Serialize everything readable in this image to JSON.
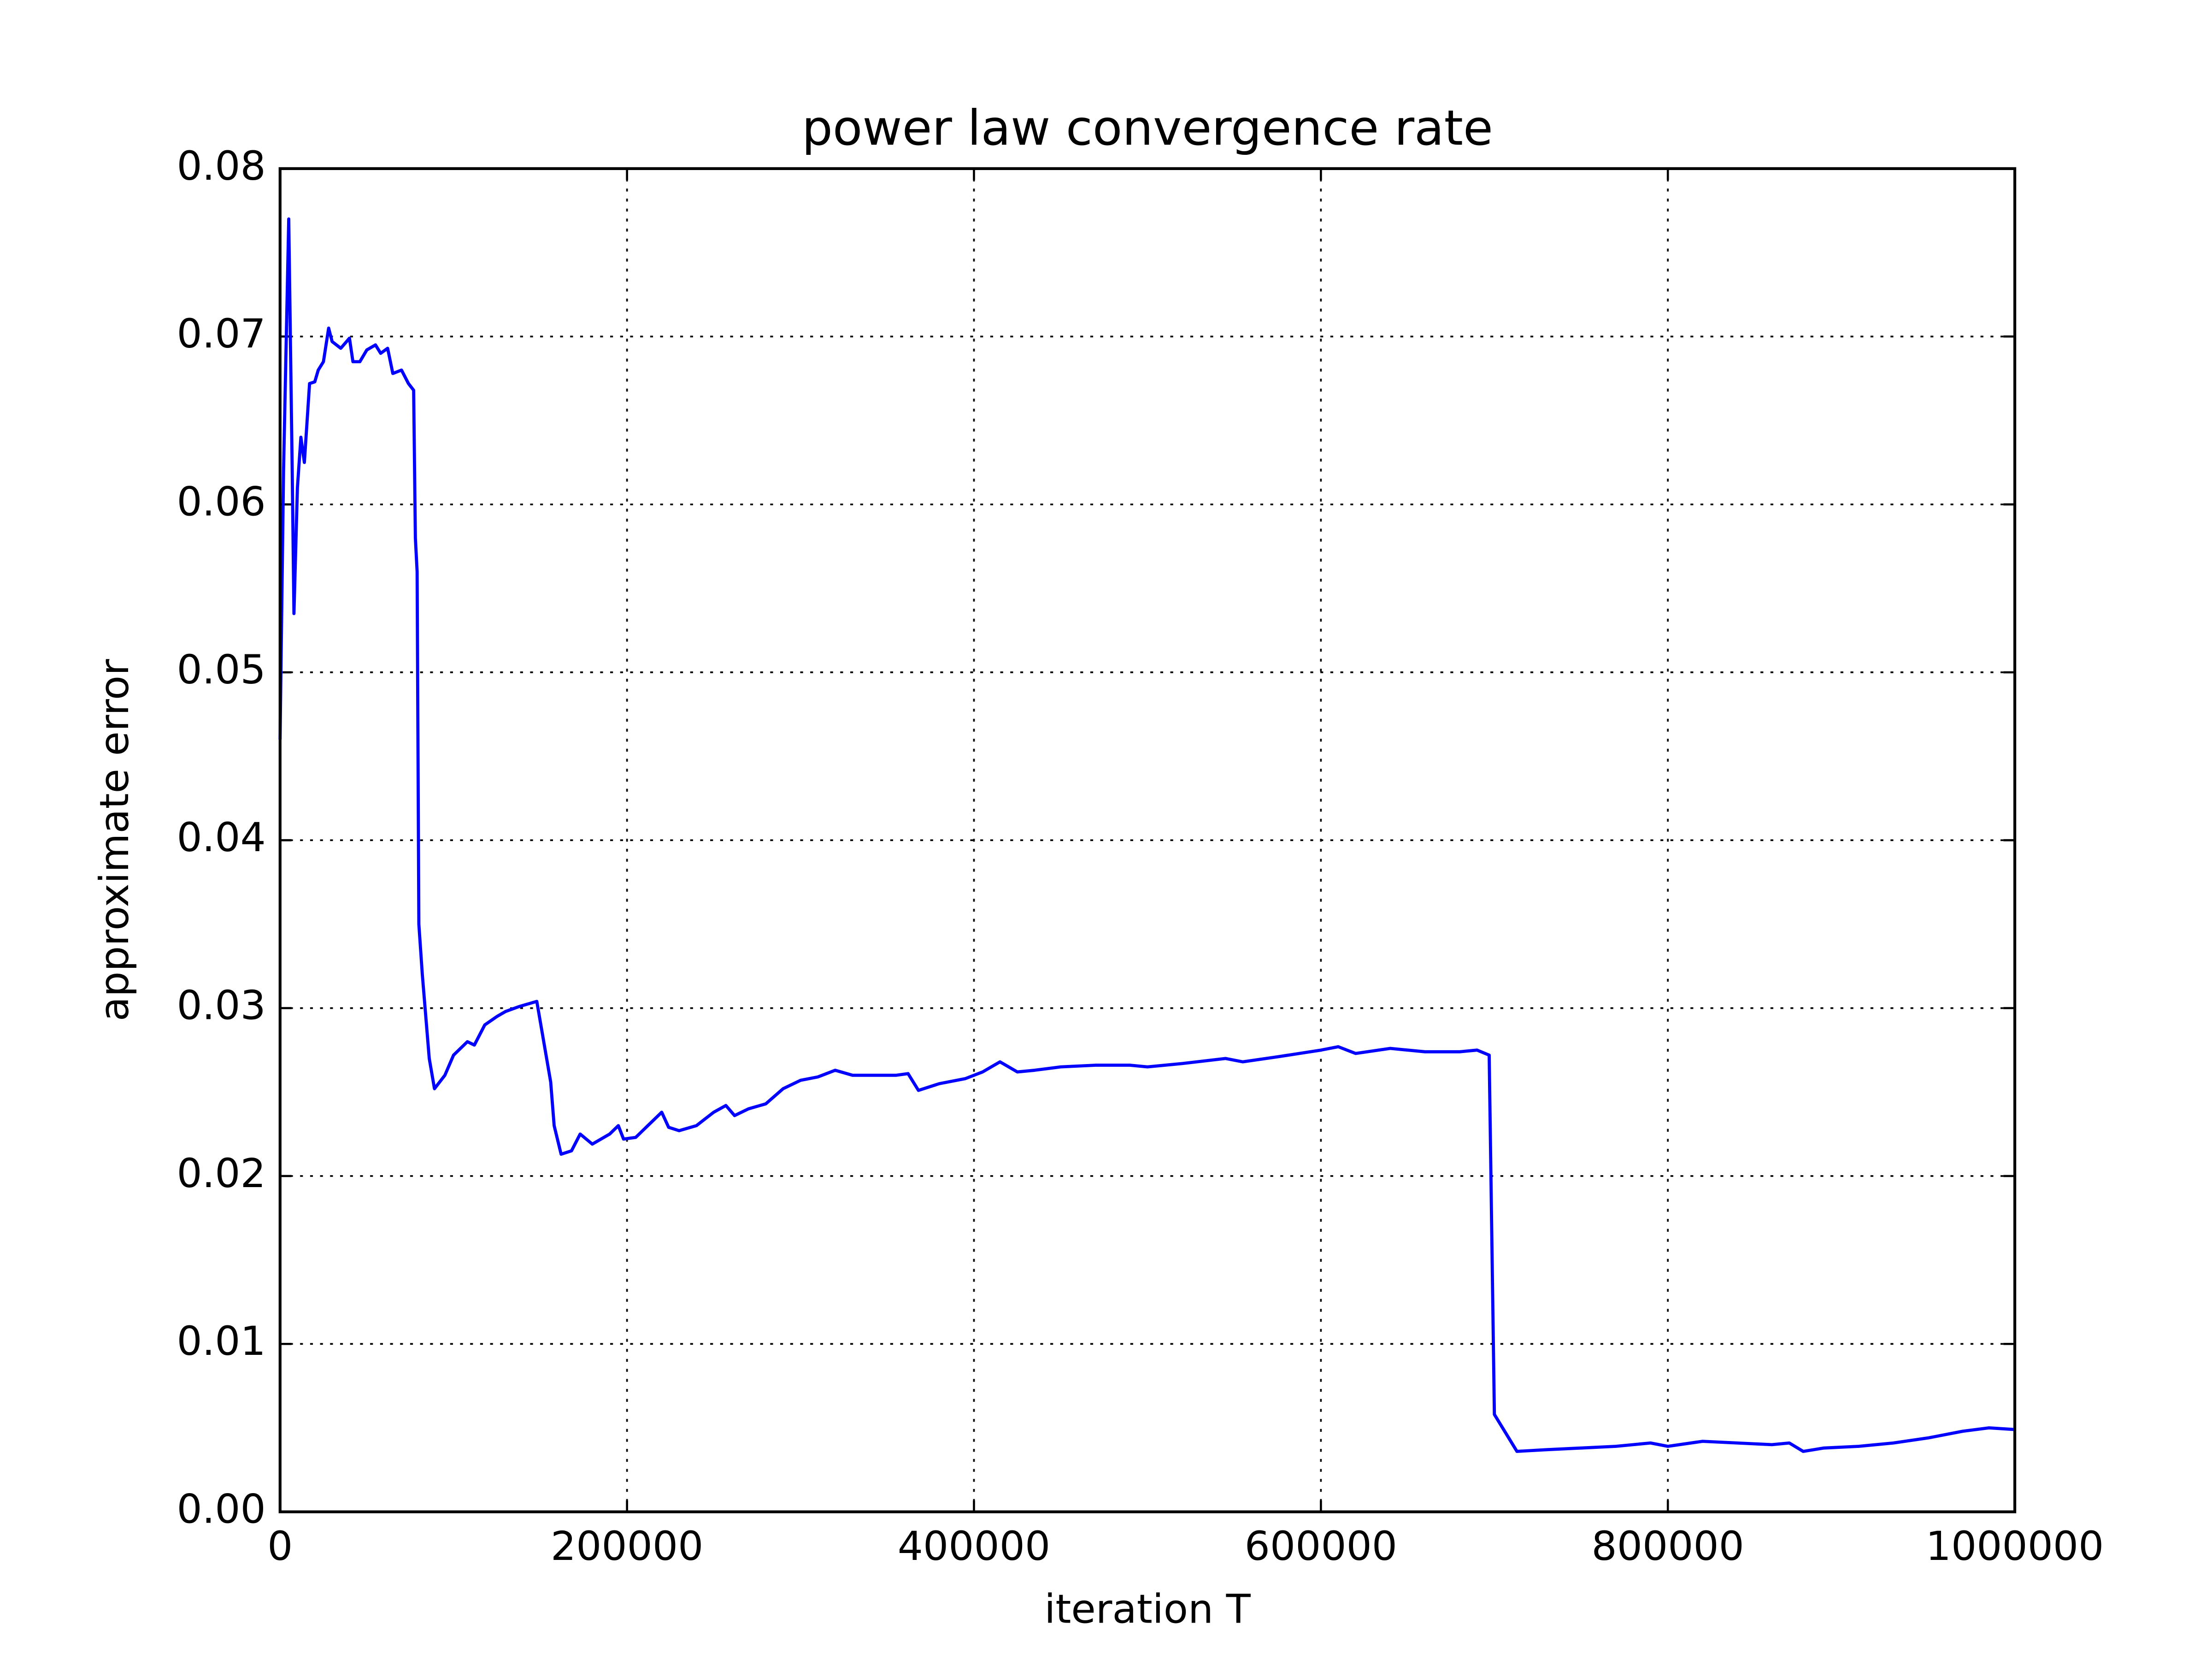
{
  "chart_data": {
    "type": "line",
    "title": "power law convergence rate",
    "x_label": "iteration T",
    "y_label": "approximate error",
    "xlim": [
      0,
      1000000
    ],
    "xticks": [
      0,
      200000,
      400000,
      600000,
      800000,
      1000000
    ],
    "ylim": [
      0,
      0.08
    ],
    "yticks": [
      {
        "value": 0,
        "label": "0.00"
      },
      0.01,
      0.02,
      0.03,
      0.04,
      0.05,
      0.06,
      0.07,
      0.08
    ],
    "grid": true,
    "series": [
      {
        "color": "#0000ff",
        "x": [
          0,
          2000,
          5000,
          7000,
          8000,
          10000,
          12000,
          14000,
          17000,
          20000,
          22000,
          25000,
          28000,
          30000,
          35000,
          40000,
          42000,
          46000,
          50000,
          55000,
          58000,
          62000,
          65000,
          70000,
          74000,
          77000,
          78000,
          79000,
          80000,
          82000,
          86000,
          89000,
          95000,
          100000,
          108000,
          112000,
          118000,
          125000,
          130000,
          138000,
          148000,
          156000,
          158000,
          162000,
          168000,
          173000,
          180000,
          190000,
          195000,
          198000,
          205000,
          212000,
          220000,
          224000,
          230000,
          240000,
          250000,
          257000,
          262000,
          270000,
          280000,
          290000,
          300000,
          310000,
          320000,
          330000,
          345000,
          355000,
          362000,
          368000,
          380000,
          395000,
          405000,
          415000,
          425000,
          435000,
          450000,
          470000,
          490000,
          500000,
          520000,
          545000,
          555000,
          575000,
          600000,
          610000,
          620000,
          640000,
          660000,
          680000,
          690000,
          697000,
          700000,
          713000,
          730000,
          750000,
          770000,
          790000,
          800000,
          820000,
          840000,
          860000,
          870000,
          878000,
          890000,
          910000,
          930000,
          950000,
          970000,
          985000,
          1000000
        ],
        "values": [
          0.046,
          0.062,
          0.077,
          0.062,
          0.0535,
          0.061,
          0.064,
          0.0625,
          0.0672,
          0.0673,
          0.068,
          0.0685,
          0.0705,
          0.0697,
          0.0693,
          0.0699,
          0.0685,
          0.0685,
          0.0692,
          0.0695,
          0.069,
          0.0693,
          0.0678,
          0.068,
          0.0672,
          0.0668,
          0.058,
          0.056,
          0.035,
          0.032,
          0.027,
          0.0252,
          0.026,
          0.0272,
          0.028,
          0.0278,
          0.029,
          0.0295,
          0.0298,
          0.0301,
          0.0304,
          0.0256,
          0.023,
          0.0213,
          0.0215,
          0.0225,
          0.0219,
          0.0225,
          0.023,
          0.0222,
          0.0223,
          0.023,
          0.0238,
          0.0229,
          0.0227,
          0.023,
          0.0238,
          0.0242,
          0.0236,
          0.024,
          0.0243,
          0.0252,
          0.0257,
          0.0259,
          0.0263,
          0.026,
          0.026,
          0.026,
          0.0261,
          0.0251,
          0.0255,
          0.0258,
          0.0262,
          0.0268,
          0.0262,
          0.0263,
          0.0265,
          0.0266,
          0.0266,
          0.0265,
          0.0267,
          0.027,
          0.0268,
          0.0271,
          0.0275,
          0.0277,
          0.0273,
          0.0276,
          0.0274,
          0.0274,
          0.0275,
          0.0272,
          0.0058,
          0.0036,
          0.0037,
          0.0038,
          0.0039,
          0.0041,
          0.0039,
          0.0042,
          0.0041,
          0.004,
          0.0041,
          0.0036,
          0.0038,
          0.0039,
          0.0041,
          0.0044,
          0.0048,
          0.005,
          0.0049
        ]
      }
    ]
  }
}
